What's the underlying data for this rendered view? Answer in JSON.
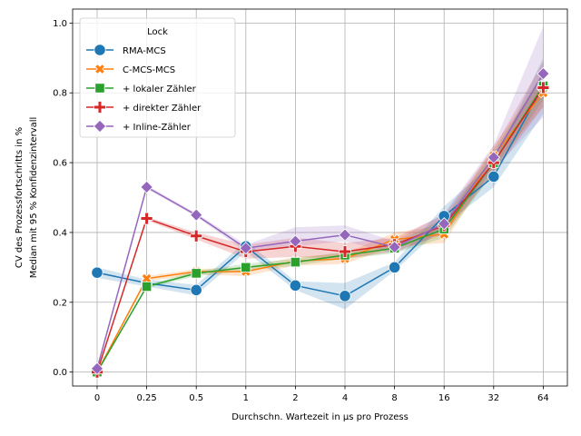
{
  "chart_data": {
    "type": "line",
    "xlabel": "Durchschn. Wartezeit in µs pro Prozess",
    "ylabel": [
      "CV des Prozessfortschritts in %",
      "Median mit 95 % Konfidenzintervall"
    ],
    "categories": [
      "0",
      "0.25",
      "0.5",
      "1",
      "2",
      "4",
      "8",
      "16",
      "32",
      "64"
    ],
    "ylim": [
      -0.04,
      1.04
    ],
    "yticks": [
      "0.0",
      "0.2",
      "0.4",
      "0.6",
      "0.8",
      "1.0"
    ],
    "grid": true,
    "legend": {
      "title": "Lock",
      "placement": "top-left"
    },
    "series": [
      {
        "name": "RMA-MCS",
        "color": "#1f77b4",
        "marker": "circle",
        "values": [
          0.285,
          0.255,
          0.235,
          0.36,
          0.248,
          0.218,
          0.3,
          0.447,
          0.56,
          0.82
        ],
        "ci_low": [
          0.27,
          0.245,
          0.22,
          0.345,
          0.235,
          0.18,
          0.29,
          0.42,
          0.53,
          0.74
        ],
        "ci_high": [
          0.3,
          0.265,
          0.25,
          0.375,
          0.26,
          0.255,
          0.315,
          0.475,
          0.6,
          0.9
        ]
      },
      {
        "name": "C-MCS-MCS",
        "color": "#ff7f0e",
        "marker": "x",
        "values": [
          0.0,
          0.268,
          0.288,
          0.288,
          0.318,
          0.325,
          0.38,
          0.395,
          0.62,
          0.8
        ],
        "ci_low": [
          0.0,
          0.26,
          0.28,
          0.275,
          0.305,
          0.31,
          0.36,
          0.37,
          0.59,
          0.76
        ],
        "ci_high": [
          0.0,
          0.275,
          0.295,
          0.3,
          0.33,
          0.34,
          0.4,
          0.42,
          0.65,
          0.84
        ]
      },
      {
        "name": "+ lokaler Zähler",
        "color": "#2ca02c",
        "marker": "square",
        "values": [
          0.0,
          0.245,
          0.283,
          0.3,
          0.315,
          0.335,
          0.355,
          0.41,
          0.6,
          0.82
        ],
        "ci_low": [
          0.0,
          0.24,
          0.275,
          0.29,
          0.305,
          0.325,
          0.34,
          0.385,
          0.57,
          0.78
        ],
        "ci_high": [
          0.0,
          0.25,
          0.29,
          0.31,
          0.325,
          0.345,
          0.37,
          0.44,
          0.63,
          0.86
        ]
      },
      {
        "name": "+ direkter Zähler",
        "color": "#d62728",
        "marker": "plus",
        "values": [
          0.0,
          0.44,
          0.39,
          0.345,
          0.36,
          0.345,
          0.365,
          0.42,
          0.6,
          0.815
        ],
        "ci_low": [
          0.0,
          0.435,
          0.38,
          0.325,
          0.33,
          0.325,
          0.345,
          0.395,
          0.57,
          0.76
        ],
        "ci_high": [
          0.0,
          0.445,
          0.4,
          0.365,
          0.385,
          0.37,
          0.385,
          0.45,
          0.64,
          0.89
        ]
      },
      {
        "name": "+ Inline-Zähler",
        "color": "#9467bd",
        "marker": "diamond",
        "values": [
          0.01,
          0.53,
          0.45,
          0.355,
          0.375,
          0.393,
          0.358,
          0.425,
          0.615,
          0.855
        ],
        "ci_low": [
          0.005,
          0.525,
          0.445,
          0.345,
          0.36,
          0.375,
          0.34,
          0.4,
          0.58,
          0.73
        ],
        "ci_high": [
          0.015,
          0.535,
          0.455,
          0.365,
          0.415,
          0.42,
          0.375,
          0.455,
          0.65,
          0.99
        ]
      }
    ]
  }
}
